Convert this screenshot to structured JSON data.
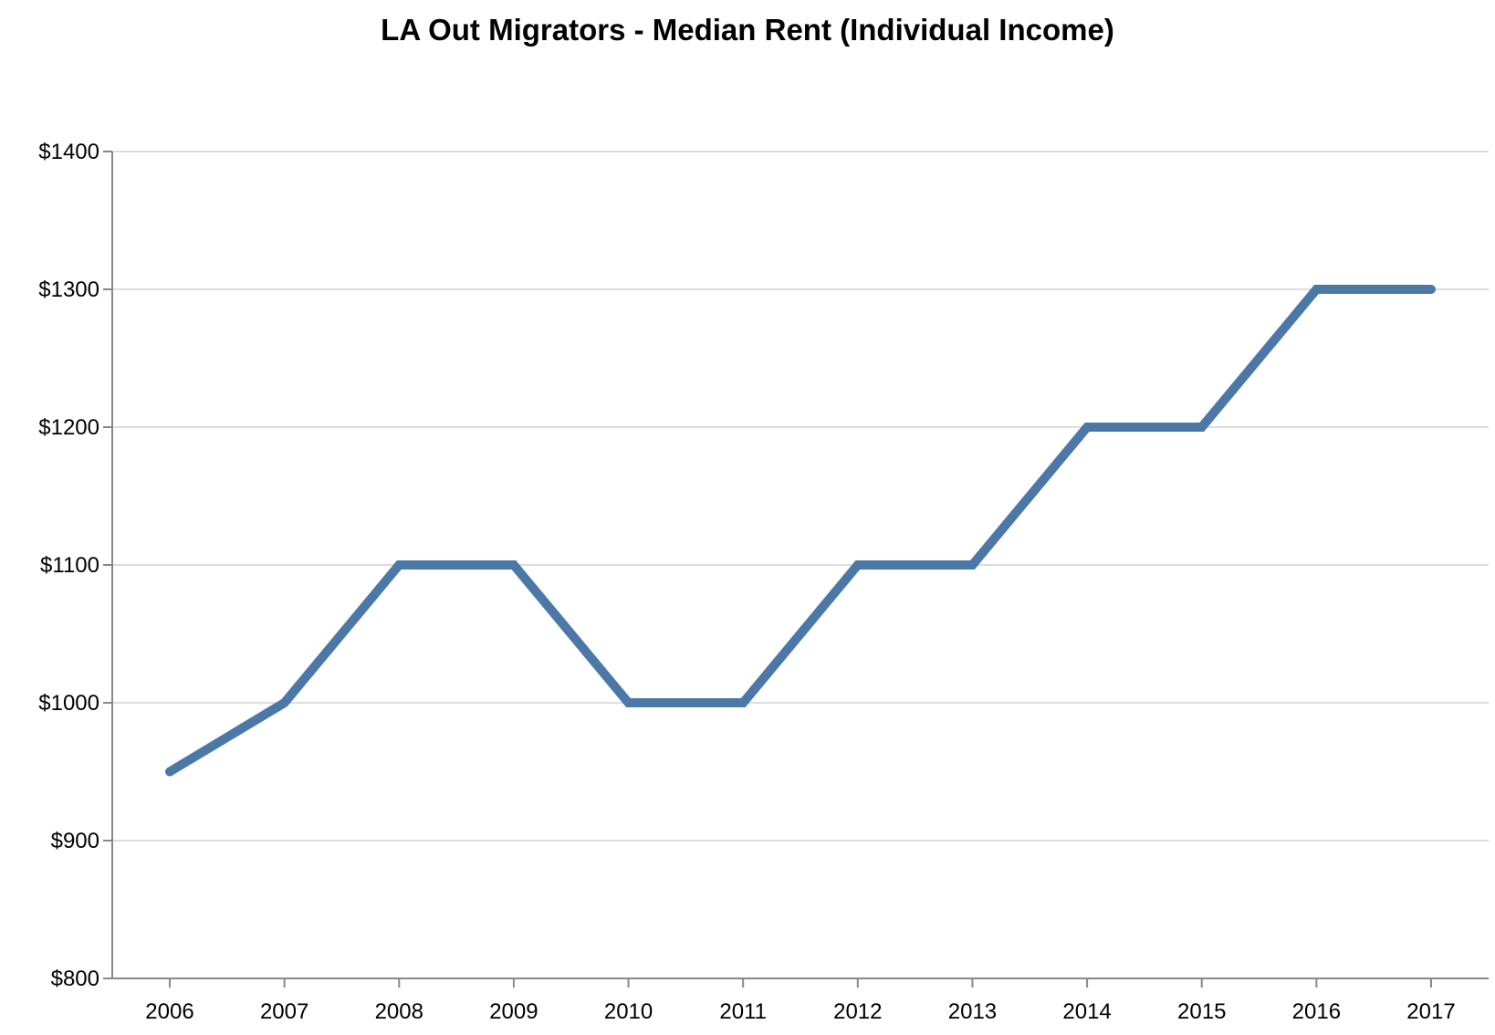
{
  "chart_data": {
    "type": "line",
    "title": "LA Out Migrators - Median Rent (Individual Income)",
    "xlabel": "",
    "ylabel": "",
    "x": [
      "2006",
      "2007",
      "2008",
      "2009",
      "2010",
      "2011",
      "2012",
      "2013",
      "2014",
      "2015",
      "2016",
      "2017"
    ],
    "series": [
      {
        "values": [
          950,
          1000,
          1100,
          1100,
          1000,
          1000,
          1100,
          1100,
          1200,
          1200,
          1300,
          1300
        ]
      }
    ],
    "ylim": [
      800,
      1400
    ],
    "y_ticks": [
      800,
      900,
      1000,
      1100,
      1200,
      1300,
      1400
    ],
    "y_tick_labels": [
      "$800",
      "$900",
      "$1000",
      "$1100",
      "$1200",
      "$1300",
      "$1400"
    ],
    "grid": "horizontal",
    "legend": "none",
    "colors": {
      "line": "#4c78a8",
      "grid": "#dddddd",
      "axis": "#888888"
    }
  }
}
